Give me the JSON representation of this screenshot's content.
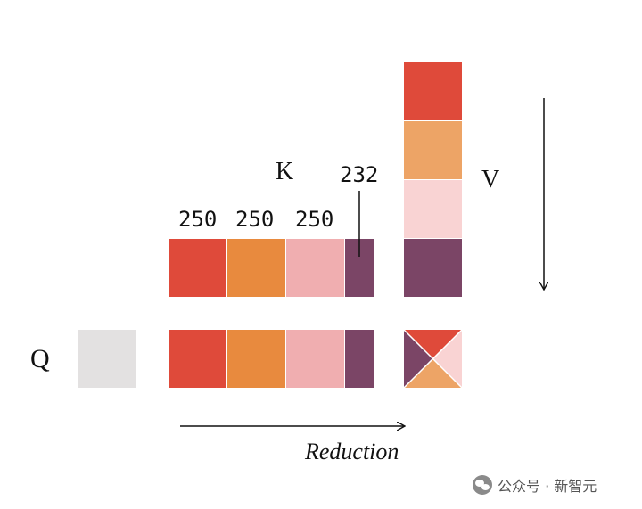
{
  "labels": {
    "q": "Q",
    "k": "K",
    "v": "V",
    "reduction": "Reduction"
  },
  "block_sizes": [
    "250",
    "250",
    "250",
    "232"
  ],
  "colors": {
    "red": "#df4a3a",
    "orange": "#e88a3e",
    "light_orange": "#eda466",
    "pink": "#f0aeb0",
    "light_pink": "#f9d3d3",
    "plum": "#7b4566",
    "q_gray": "#e3e1e1"
  },
  "watermark": {
    "text": "公众号 · 新智元",
    "icon": "wechat-icon"
  }
}
